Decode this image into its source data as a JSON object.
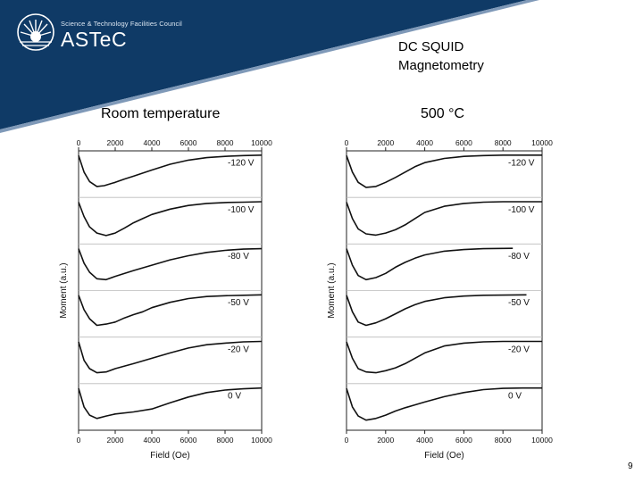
{
  "header": {
    "council_text": "Science & Technology Facilities Council",
    "brand_text": "ASTeC",
    "banner_color": "#0f3a66"
  },
  "slide": {
    "title_line1": "DC SQUID",
    "title_line2": "Magnetometry",
    "page_number": "9"
  },
  "chart_data": [
    {
      "type": "line",
      "condition": "Room temperature",
      "xlabel": "Field (Oe)",
      "ylabel": "Moment (a.u.)",
      "xlim": [
        0,
        10000
      ],
      "xticks": [
        0,
        2000,
        4000,
        6000,
        8000,
        10000
      ],
      "grid": false,
      "panels": [
        {
          "label": "-120 V",
          "x": [
            0,
            300,
            600,
            1000,
            1400,
            2000,
            2500,
            3000,
            4000,
            5000,
            6000,
            7000,
            8000,
            9000,
            10000
          ],
          "y": [
            0.95,
            0.55,
            0.32,
            0.2,
            0.22,
            0.3,
            0.38,
            0.45,
            0.6,
            0.74,
            0.84,
            0.9,
            0.93,
            0.95,
            0.96
          ]
        },
        {
          "label": "-100 V",
          "x": [
            0,
            300,
            600,
            1000,
            1500,
            2000,
            2500,
            3000,
            3500,
            4000,
            5000,
            6000,
            7000,
            8000,
            9000,
            10000
          ],
          "y": [
            0.95,
            0.6,
            0.35,
            0.2,
            0.14,
            0.2,
            0.32,
            0.45,
            0.55,
            0.65,
            0.78,
            0.87,
            0.92,
            0.94,
            0.95,
            0.96
          ]
        },
        {
          "label": "-80 V",
          "x": [
            0,
            300,
            600,
            1000,
            1500,
            2000,
            3000,
            4000,
            5000,
            6000,
            7000,
            8000,
            9000,
            10000
          ],
          "y": [
            0.95,
            0.6,
            0.38,
            0.22,
            0.2,
            0.28,
            0.42,
            0.55,
            0.68,
            0.78,
            0.86,
            0.91,
            0.94,
            0.95
          ]
        },
        {
          "label": "-50 V",
          "x": [
            0,
            300,
            600,
            1000,
            1500,
            2000,
            2500,
            3000,
            3500,
            4000,
            5000,
            6000,
            7000,
            8000,
            9000,
            10000
          ],
          "y": [
            0.95,
            0.6,
            0.38,
            0.22,
            0.25,
            0.3,
            0.4,
            0.48,
            0.55,
            0.65,
            0.78,
            0.87,
            0.92,
            0.94,
            0.95,
            0.96
          ]
        },
        {
          "label": "-20 V",
          "x": [
            0,
            300,
            600,
            1000,
            1500,
            2000,
            3000,
            4000,
            5000,
            6000,
            7000,
            8000,
            9000,
            10000
          ],
          "y": [
            0.95,
            0.5,
            0.3,
            0.2,
            0.22,
            0.3,
            0.42,
            0.55,
            0.68,
            0.8,
            0.88,
            0.92,
            0.95,
            0.96
          ]
        },
        {
          "label": "0 V",
          "x": [
            0,
            300,
            600,
            1000,
            1500,
            2000,
            3000,
            4000,
            5000,
            6000,
            7000,
            8000,
            9000,
            10000
          ],
          "y": [
            0.95,
            0.5,
            0.3,
            0.22,
            0.28,
            0.33,
            0.38,
            0.45,
            0.6,
            0.74,
            0.85,
            0.91,
            0.94,
            0.96
          ]
        }
      ]
    },
    {
      "type": "line",
      "condition": "500 °C",
      "xlabel": "Field (Oe)",
      "ylabel": "Moment (a.u.)",
      "xlim": [
        0,
        10000
      ],
      "xticks": [
        0,
        2000,
        4000,
        6000,
        8000,
        10000
      ],
      "grid": false,
      "panels": [
        {
          "label": "-120 V",
          "x": [
            0,
            300,
            600,
            1000,
            1500,
            2000,
            2500,
            3000,
            3500,
            4000,
            5000,
            6000,
            7000,
            8000,
            9000,
            10000
          ],
          "y": [
            0.95,
            0.55,
            0.3,
            0.18,
            0.2,
            0.3,
            0.42,
            0.55,
            0.68,
            0.78,
            0.88,
            0.93,
            0.95,
            0.96,
            0.96,
            0.96
          ]
        },
        {
          "label": "-100 V",
          "x": [
            0,
            300,
            600,
            1000,
            1500,
            2000,
            2500,
            3000,
            3500,
            4000,
            5000,
            6000,
            7000,
            8000,
            9000,
            10000
          ],
          "y": [
            0.95,
            0.55,
            0.3,
            0.18,
            0.15,
            0.2,
            0.28,
            0.4,
            0.55,
            0.7,
            0.85,
            0.92,
            0.95,
            0.96,
            0.96,
            0.96
          ]
        },
        {
          "label": "-80 V",
          "x": [
            0,
            300,
            600,
            1000,
            1500,
            2000,
            2500,
            3000,
            3500,
            4000,
            5000,
            6000,
            7000,
            8500
          ],
          "y": [
            0.95,
            0.55,
            0.3,
            0.2,
            0.25,
            0.35,
            0.5,
            0.62,
            0.72,
            0.8,
            0.89,
            0.93,
            0.95,
            0.96
          ]
        },
        {
          "label": "-50 V",
          "x": [
            0,
            300,
            600,
            1000,
            1500,
            2000,
            2500,
            3000,
            3500,
            4000,
            5000,
            6000,
            7000,
            9200
          ],
          "y": [
            0.95,
            0.55,
            0.3,
            0.22,
            0.28,
            0.38,
            0.5,
            0.62,
            0.72,
            0.8,
            0.89,
            0.93,
            0.95,
            0.96
          ]
        },
        {
          "label": "-20 V",
          "x": [
            0,
            300,
            600,
            1000,
            1500,
            2000,
            2500,
            3000,
            3500,
            4000,
            5000,
            6000,
            7000,
            8000,
            9000,
            10000
          ],
          "y": [
            0.95,
            0.55,
            0.3,
            0.22,
            0.2,
            0.25,
            0.32,
            0.42,
            0.55,
            0.68,
            0.85,
            0.92,
            0.95,
            0.96,
            0.96,
            0.96
          ]
        },
        {
          "label": "0 V",
          "x": [
            0,
            300,
            600,
            1000,
            1500,
            2000,
            2500,
            3000,
            3500,
            4000,
            5000,
            6000,
            7000,
            8000,
            9000,
            10000
          ],
          "y": [
            0.95,
            0.5,
            0.28,
            0.18,
            0.22,
            0.3,
            0.4,
            0.48,
            0.55,
            0.62,
            0.75,
            0.85,
            0.92,
            0.95,
            0.96,
            0.96
          ]
        }
      ]
    }
  ]
}
